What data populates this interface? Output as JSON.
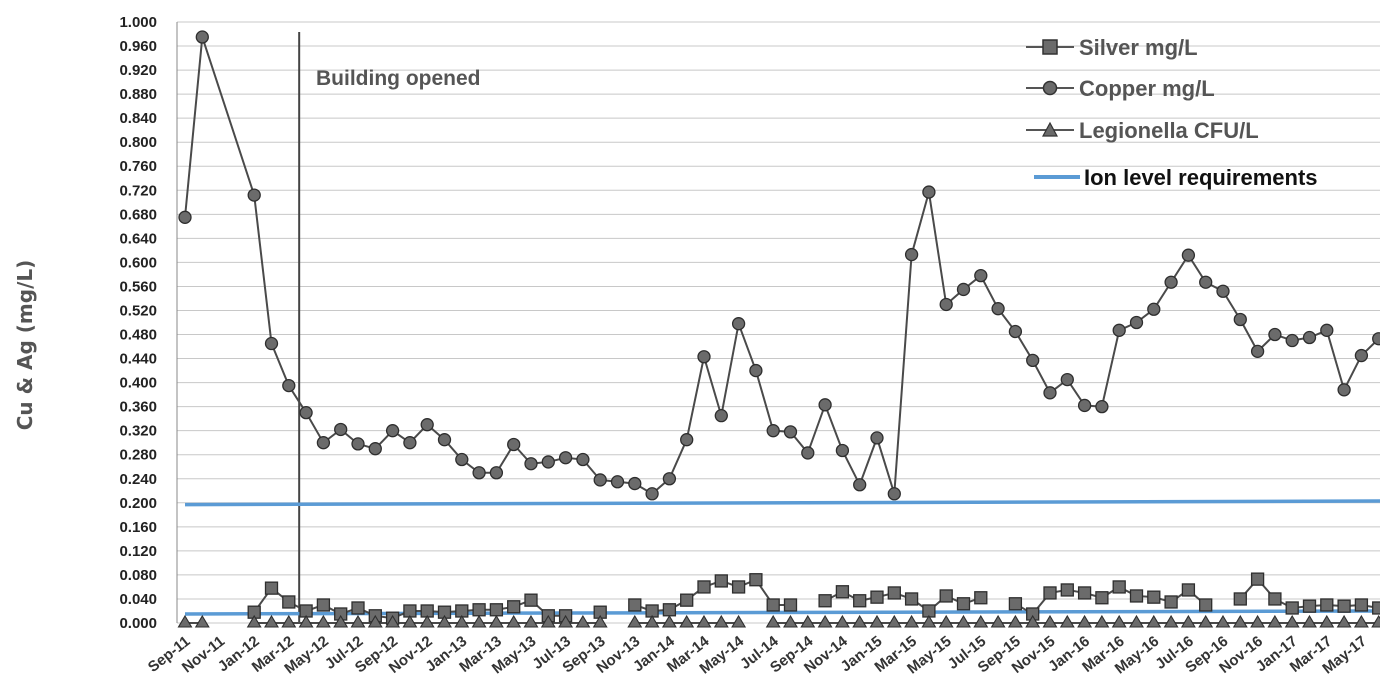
{
  "chart_data": {
    "type": "line",
    "ylabel": "Cu & Ag (mg/L)",
    "xlabel": "",
    "ylim": [
      0,
      1.0
    ],
    "y_ticks": [
      "0.000",
      "0.040",
      "0.080",
      "0.120",
      "0.160",
      "0.200",
      "0.240",
      "0.280",
      "0.320",
      "0.360",
      "0.400",
      "0.440",
      "0.480",
      "0.520",
      "0.560",
      "0.600",
      "0.640",
      "0.680",
      "0.720",
      "0.760",
      "0.800",
      "0.840",
      "0.880",
      "0.920",
      "0.960",
      "1.000"
    ],
    "x_tick_labels": [
      "Sep-11",
      "Nov-11",
      "Jan-12",
      "Mar-12",
      "May-12",
      "Jul-12",
      "Sep-12",
      "Nov-12",
      "Jan-13",
      "Mar-13",
      "May-13",
      "Jul-13",
      "Sep-13",
      "Nov-13",
      "Jan-14",
      "Mar-14",
      "May-14",
      "Jul-14",
      "Sep-14",
      "Nov-14",
      "Jan-15",
      "Mar-15",
      "May-15",
      "Jul-15",
      "Sep-15",
      "Nov-15",
      "Jan-16",
      "Mar-16",
      "May-16",
      "Jul-16",
      "Sep-16",
      "Nov-16",
      "Jan-17",
      "Mar-17",
      "May-17"
    ],
    "x_range": [
      0,
      69.6
    ],
    "grid": true,
    "legend_position": "top-right",
    "annotation": {
      "text": "Building opened",
      "x": 6.6
    },
    "series": [
      {
        "name": "Silver mg/L",
        "marker": "square",
        "color": "#555555",
        "x": [
          4,
          5,
          6,
          7,
          8,
          9,
          10,
          11,
          12,
          13,
          14,
          15,
          16,
          17,
          18,
          19,
          20,
          21,
          22,
          24,
          26,
          27,
          28,
          29,
          30,
          31,
          32,
          33,
          34,
          35,
          37,
          38,
          39,
          40,
          41,
          42,
          43,
          44,
          45,
          46,
          48,
          49,
          50,
          51,
          52,
          53,
          54,
          55,
          56,
          57,
          58,
          59,
          61,
          62,
          63,
          64,
          65,
          66,
          67,
          68,
          69,
          70
        ],
        "y": [
          0.018,
          0.058,
          0.035,
          0.02,
          0.03,
          0.015,
          0.025,
          0.012,
          0.008,
          0.02,
          0.02,
          0.018,
          0.02,
          0.022,
          0.022,
          0.027,
          0.038,
          0.012,
          0.012,
          0.018,
          0.03,
          0.02,
          0.022,
          0.038,
          0.06,
          0.07,
          0.06,
          0.072,
          0.03,
          0.03,
          0.037,
          0.052,
          0.037,
          0.043,
          0.05,
          0.04,
          0.02,
          0.045,
          0.032,
          0.042,
          0.032,
          0.015,
          0.05,
          0.055,
          0.05,
          0.042,
          0.06,
          0.045,
          0.043,
          0.035,
          0.055,
          0.03,
          0.04,
          0.073,
          0.04,
          0.025,
          0.028,
          0.03,
          0.028,
          0.03,
          0.025,
          0.028
        ]
      },
      {
        "name": "Copper mg/L",
        "marker": "circle",
        "color": "#555555",
        "x": [
          0,
          1,
          4,
          5,
          6,
          7,
          8,
          9,
          10,
          11,
          12,
          13,
          14,
          15,
          16,
          17,
          18,
          19,
          20,
          21,
          22,
          23,
          24,
          25,
          26,
          27,
          28,
          29,
          30,
          31,
          32,
          33,
          34,
          35,
          36,
          37,
          38,
          39,
          40,
          41,
          42,
          43,
          44,
          45,
          46,
          47,
          48,
          49,
          50,
          51,
          52,
          53,
          54,
          55,
          56,
          57,
          58,
          59,
          60,
          61,
          62,
          63,
          64,
          65,
          66,
          67,
          68,
          69,
          70
        ],
        "y": [
          0.675,
          0.975,
          0.712,
          0.465,
          0.395,
          0.35,
          0.3,
          0.322,
          0.298,
          0.29,
          0.32,
          0.3,
          0.33,
          0.305,
          0.272,
          0.25,
          0.25,
          0.297,
          0.265,
          0.268,
          0.275,
          0.272,
          0.238,
          0.235,
          0.232,
          0.215,
          0.24,
          0.305,
          0.443,
          0.345,
          0.498,
          0.42,
          0.32,
          0.318,
          0.283,
          0.363,
          0.287,
          0.23,
          0.308,
          0.215,
          0.613,
          0.717,
          0.53,
          0.555,
          0.578,
          0.523,
          0.485,
          0.437,
          0.383,
          0.405,
          0.362,
          0.36,
          0.487,
          0.5,
          0.522,
          0.567,
          0.612,
          0.567,
          0.552,
          0.505,
          0.452,
          0.48,
          0.47,
          0.475,
          0.487,
          0.388,
          0.445,
          0.473,
          0.475
        ]
      },
      {
        "name": "Legionella CFU/L",
        "marker": "triangle",
        "color": "#555555",
        "x": [
          0,
          1,
          4,
          5,
          6,
          7,
          8,
          9,
          10,
          11,
          12,
          13,
          14,
          15,
          16,
          17,
          18,
          19,
          20,
          21,
          22,
          23,
          24,
          26,
          27,
          28,
          29,
          30,
          31,
          32,
          34,
          35,
          36,
          37,
          38,
          39,
          40,
          41,
          42,
          43,
          44,
          45,
          46,
          47,
          48,
          49,
          50,
          51,
          52,
          53,
          54,
          55,
          56,
          57,
          58,
          59,
          60,
          61,
          62,
          63,
          64,
          65,
          66,
          67,
          68,
          69,
          70
        ],
        "y": [
          0,
          0,
          0,
          0,
          0,
          0,
          0,
          0,
          0,
          0,
          0,
          0,
          0,
          0,
          0,
          0,
          0,
          0,
          0,
          0,
          0,
          0,
          0,
          0,
          0,
          0,
          0,
          0,
          0,
          0,
          0,
          0,
          0,
          0,
          0,
          0,
          0,
          0,
          0,
          0,
          0,
          0,
          0,
          0,
          0,
          0,
          0,
          0,
          0,
          0,
          0,
          0,
          0,
          0,
          0,
          0,
          0,
          0,
          0,
          0,
          0,
          0,
          0,
          0,
          0,
          0,
          0
        ]
      },
      {
        "name": "Ion level requirements",
        "marker": "none",
        "color": "#5b9bd5",
        "lines": [
          {
            "x": [
              0,
              69.6
            ],
            "y": [
              0.197,
              0.203
            ]
          },
          {
            "x": [
              0,
              69.6
            ],
            "y": [
              0.015,
              0.02
            ]
          }
        ]
      }
    ]
  }
}
